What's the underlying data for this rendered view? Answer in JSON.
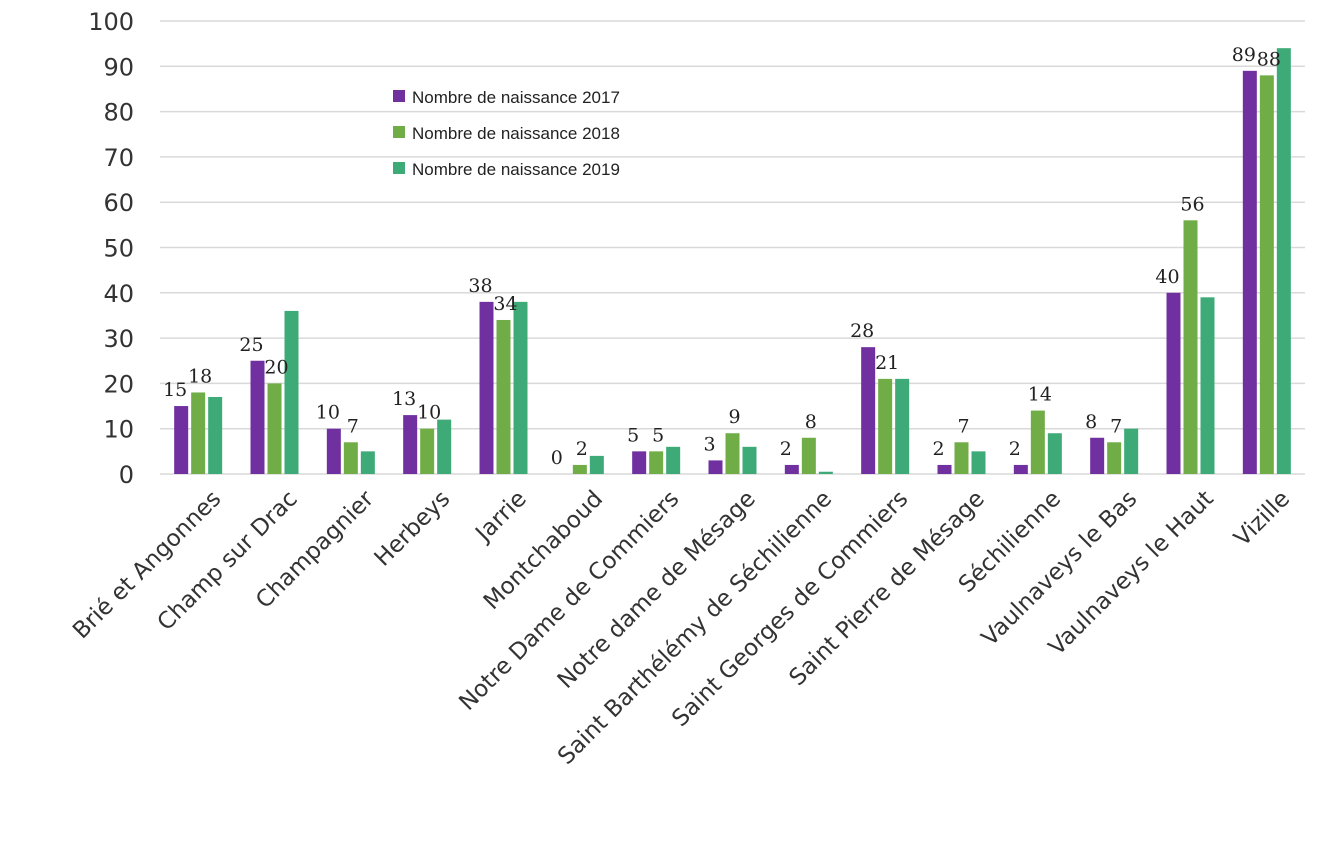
{
  "colors": {
    "series": [
      "#7030a0",
      "#70ad47",
      "#3daa77"
    ],
    "grid": "#d9d9d9",
    "text": "#333333"
  },
  "chart_data": {
    "type": "bar",
    "title": "",
    "xlabel": "",
    "ylabel": "",
    "ylim": [
      0,
      100
    ],
    "yticks": [
      0,
      10,
      20,
      30,
      40,
      50,
      60,
      70,
      80,
      90,
      100
    ],
    "grid": true,
    "legend_position": "top-center",
    "categories": [
      "Brié et Angonnes",
      "Champ sur Drac",
      "Champagnier",
      "Herbeys",
      "Jarrie",
      "Montchaboud",
      "Notre Dame de Commiers",
      "Notre dame de Mésage",
      "Saint Barthélémy de Séchilienne",
      "Saint Georges de Commiers",
      "Saint Pierre de Mésage",
      "Séchilienne",
      "Vaulnaveys le Bas",
      "Vaulnaveys le Haut",
      "Vizille"
    ],
    "series": [
      {
        "name": "Nombre de naissance 2017",
        "values": [
          15,
          25,
          10,
          13,
          38,
          0,
          5,
          3,
          2,
          28,
          2,
          2,
          8,
          40,
          89
        ],
        "labels": [
          "15",
          "25",
          "10",
          "13",
          "38",
          "0",
          "5",
          "3",
          "2",
          "28",
          "2",
          "2",
          "8",
          "40",
          "89"
        ]
      },
      {
        "name": "Nombre de naissance 2018",
        "values": [
          18,
          20,
          7,
          10,
          34,
          2,
          5,
          9,
          8,
          21,
          7,
          14,
          7,
          56,
          88
        ],
        "labels": [
          "18",
          "20",
          "7",
          "10",
          "34",
          "2",
          "5",
          "9",
          "8",
          "21",
          "7",
          "14",
          "7",
          "56",
          "88"
        ]
      },
      {
        "name": "Nombre de naissance 2019",
        "values": [
          17,
          36,
          5,
          12,
          38,
          4,
          6,
          6,
          0.5,
          21,
          5,
          9,
          10,
          39,
          94
        ],
        "labels": []
      }
    ]
  }
}
